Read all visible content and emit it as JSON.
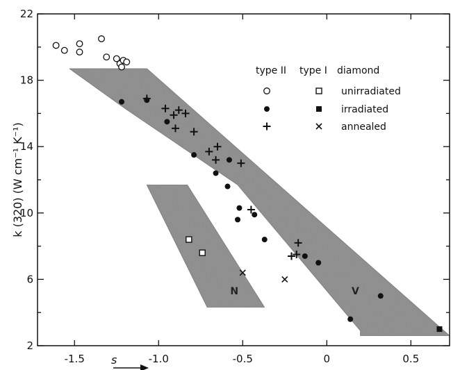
{
  "chart_data": {
    "type": "scatter",
    "title": "",
    "xlabel": "s",
    "ylabel": "k (320) (W cm⁻¹ K⁻¹)",
    "xlim": [
      -1.72,
      0.73
    ],
    "ylim": [
      2,
      22
    ],
    "xticks": [
      -1.5,
      -1.0,
      -0.5,
      0,
      0.5
    ],
    "xtick_labels": [
      "-1.5",
      "-1.0",
      "-0.5",
      "0",
      "0.5"
    ],
    "yticks": [
      2,
      6,
      10,
      14,
      18,
      22
    ],
    "ytick_labels": [
      "2",
      "6",
      "10",
      "14",
      "18",
      "22"
    ],
    "grid": false,
    "legend_placement": "top-right",
    "legend": {
      "header": [
        "type II",
        "type I",
        "diamond"
      ],
      "rows": [
        {
          "label": "unirradiated",
          "typeII_marker": "circle-open",
          "typeI_marker": "square-open"
        },
        {
          "label": "irradiated",
          "typeII_marker": "circle-filled",
          "typeI_marker": "square-filled"
        },
        {
          "label": "annealed",
          "typeII_marker": "plus",
          "typeI_marker": "cross"
        }
      ]
    },
    "band_regions": [
      {
        "name": "",
        "polygon": [
          [
            -1.53,
            18.7
          ],
          [
            -1.07,
            18.7
          ],
          [
            0.73,
            2.6
          ],
          [
            0.2,
            2.6
          ],
          [
            0.2,
            2.9
          ],
          [
            -0.53,
            11.7
          ],
          [
            -1.2,
            16.3
          ]
        ]
      },
      {
        "name": "",
        "polygon": [
          [
            -1.07,
            11.7
          ],
          [
            -0.83,
            11.7
          ],
          [
            -0.37,
            4.3
          ],
          [
            -0.71,
            4.3
          ]
        ]
      }
    ],
    "region_labels": [
      {
        "text": "N",
        "x": -0.55,
        "y": 5.1
      },
      {
        "text": "V",
        "x": 0.17,
        "y": 5.1
      }
    ],
    "series": [
      {
        "marker": "circle-open",
        "values": [
          [
            -1.61,
            20.1
          ],
          [
            -1.56,
            19.8
          ],
          [
            -1.47,
            20.2
          ],
          [
            -1.47,
            19.7
          ],
          [
            -1.34,
            20.5
          ],
          [
            -1.31,
            19.4
          ],
          [
            -1.25,
            19.3
          ],
          [
            -1.23,
            19.0
          ],
          [
            -1.21,
            19.2
          ],
          [
            -1.19,
            19.1
          ],
          [
            -1.22,
            18.8
          ]
        ]
      },
      {
        "marker": "circle-filled",
        "values": [
          [
            -1.22,
            16.7
          ],
          [
            -1.07,
            16.8
          ],
          [
            -0.95,
            15.5
          ],
          [
            -0.79,
            13.5
          ],
          [
            -0.66,
            12.4
          ],
          [
            -0.58,
            13.2
          ],
          [
            -0.59,
            11.6
          ],
          [
            -0.53,
            9.6
          ],
          [
            -0.52,
            10.3
          ],
          [
            -0.43,
            9.9
          ],
          [
            -0.37,
            8.4
          ],
          [
            -0.13,
            7.4
          ],
          [
            -0.05,
            7.0
          ],
          [
            0.14,
            3.6
          ],
          [
            0.32,
            5.0
          ]
        ]
      },
      {
        "marker": "plus",
        "values": [
          [
            -1.07,
            16.9
          ],
          [
            -0.96,
            16.3
          ],
          [
            -0.91,
            15.9
          ],
          [
            -0.88,
            16.2
          ],
          [
            -0.9,
            15.1
          ],
          [
            -0.84,
            16.0
          ],
          [
            -0.79,
            14.9
          ],
          [
            -0.65,
            14.0
          ],
          [
            -0.7,
            13.7
          ],
          [
            -0.66,
            13.2
          ],
          [
            -0.51,
            13.0
          ],
          [
            -0.45,
            10.2
          ],
          [
            -0.21,
            7.4
          ],
          [
            -0.17,
            8.2
          ],
          [
            -0.18,
            7.5
          ]
        ]
      },
      {
        "marker": "square-open",
        "values": [
          [
            -0.82,
            8.4
          ],
          [
            -0.74,
            7.6
          ]
        ]
      },
      {
        "marker": "cross",
        "values": [
          [
            -0.25,
            6.0
          ],
          [
            -0.5,
            6.4
          ]
        ]
      },
      {
        "marker": "square-filled",
        "values": [
          [
            0.67,
            3.0
          ]
        ]
      }
    ]
  }
}
